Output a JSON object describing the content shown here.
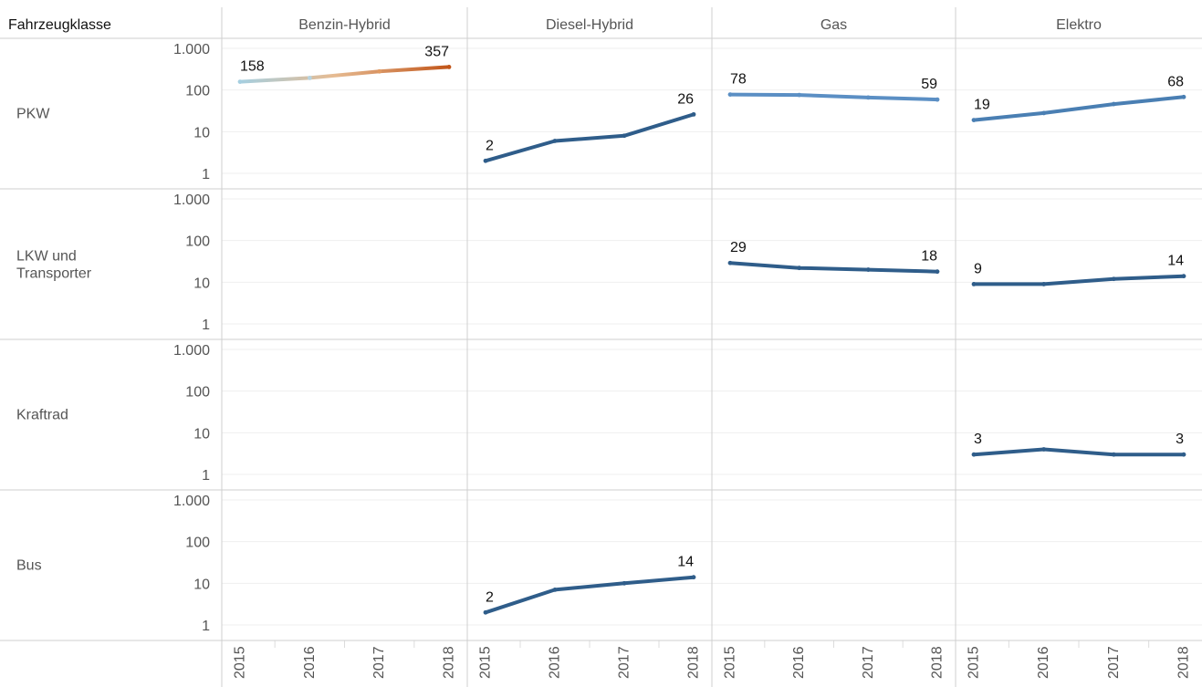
{
  "chart_data": {
    "type": "line",
    "scale": "log",
    "row_dimension_label": "Fahrzeugklasse",
    "columns": [
      "Benzin-Hybrid",
      "Diesel-Hybrid",
      "Gas",
      "Elektro"
    ],
    "rows": [
      "PKW",
      "LKW und Transporter",
      "Kraftrad",
      "Bus"
    ],
    "x": [
      "2015",
      "2016",
      "2017",
      "2018"
    ],
    "y_ticks": [
      {
        "value": 1000,
        "label": "1.000"
      },
      {
        "value": 100,
        "label": "100"
      },
      {
        "value": 10,
        "label": "10"
      },
      {
        "value": 1,
        "label": "1"
      }
    ],
    "grid": true,
    "colors": {
      "main": "#2f5d8a",
      "light": "#5b8fc4",
      "gradient_start": "#a6cfe0",
      "gradient_end": "#c2561a"
    },
    "panels": [
      {
        "row": "PKW",
        "column": "Benzin-Hybrid",
        "values": [
          158,
          195,
          280,
          357
        ],
        "labels": [
          "158",
          "357"
        ],
        "gradient": true
      },
      {
        "row": "PKW",
        "column": "Diesel-Hybrid",
        "values": [
          2,
          6,
          8,
          26
        ],
        "labels": [
          "2",
          "26"
        ],
        "color": "#2f5d8a"
      },
      {
        "row": "PKW",
        "column": "Gas",
        "values": [
          78,
          76,
          66,
          59
        ],
        "labels": [
          "78",
          "59"
        ],
        "color": "#5b8fc4"
      },
      {
        "row": "PKW",
        "column": "Elektro",
        "values": [
          19,
          28,
          46,
          68
        ],
        "labels": [
          "19",
          "68"
        ],
        "color": "#4a7fb3"
      },
      {
        "row": "LKW und Transporter",
        "column": "Gas",
        "values": [
          29,
          22,
          20,
          18
        ],
        "labels": [
          "29",
          "18"
        ],
        "color": "#2f5d8a"
      },
      {
        "row": "LKW und Transporter",
        "column": "Elektro",
        "values": [
          9,
          9,
          12,
          14
        ],
        "labels": [
          "9",
          "14"
        ],
        "color": "#2f5d8a"
      },
      {
        "row": "Kraftrad",
        "column": "Elektro",
        "values": [
          3,
          4,
          3,
          3
        ],
        "labels": [
          "3",
          "3"
        ],
        "color": "#2f5d8a"
      },
      {
        "row": "Bus",
        "column": "Diesel-Hybrid",
        "values": [
          2,
          7,
          10,
          14
        ],
        "labels": [
          "2",
          "14"
        ],
        "color": "#2f5d8a"
      }
    ]
  }
}
